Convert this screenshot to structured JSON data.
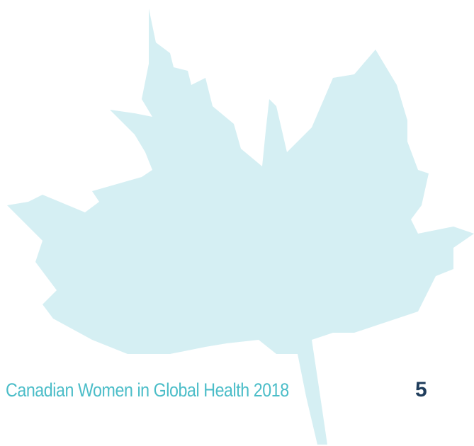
{
  "footer": {
    "title": "Canadian Women in Global Health 2018",
    "page_number": "5"
  }
}
